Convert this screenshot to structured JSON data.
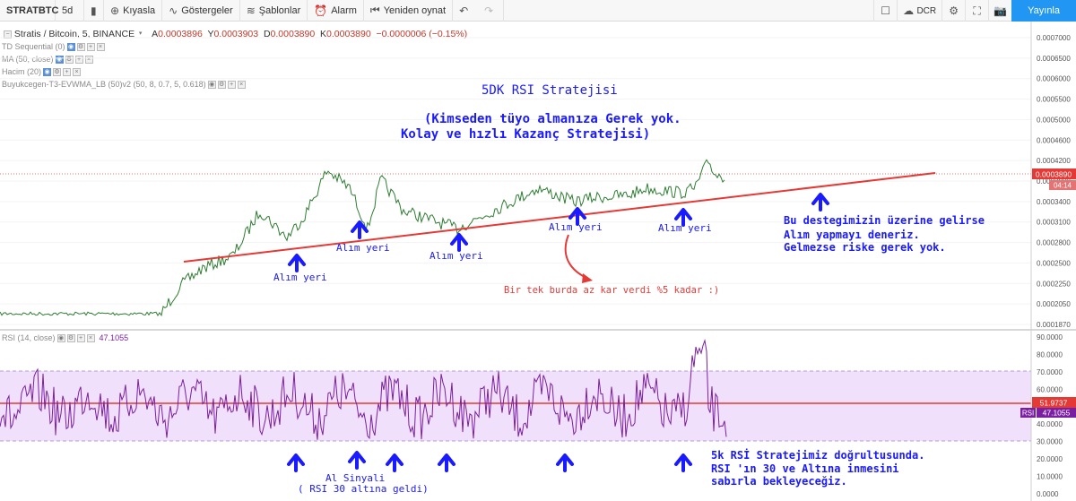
{
  "toolbar": {
    "symbol": "STRATBTC",
    "interval": "5d",
    "compare": "Kıyasla",
    "indicators": "Göstergeler",
    "templates": "Şablonlar",
    "alarm": "Alarm",
    "replay": "Yeniden oynat",
    "currency": "DCR",
    "publish": "Yayınla"
  },
  "legend": {
    "title": "Stratis / Bitcoin, 5, BINANCE",
    "open_label": "A",
    "open": "0.0003896",
    "high_label": "Y",
    "high": "0.0003903",
    "low_label": "D",
    "low": "0.0003890",
    "close_label": "K",
    "close": "0.0003890",
    "change": "−0.0000006 (−0.15%)",
    "indicators": [
      "TD Sequential (0)",
      "MA (50, close)",
      "Hacim (20)",
      "Buyukcegen-T3-EVWMA_LB (50)v2 (50, 8, 0.7, 5, 0.618)"
    ],
    "rsi_label": "RSI (14, close)",
    "rsi_value": "47.1055"
  },
  "price_axis": {
    "ticks": [
      "0.0007000",
      "0.0006500",
      "0.0006000",
      "0.0005500",
      "0.0005000",
      "0.0004600",
      "0.0004200",
      "0.0003800",
      "0.0003400",
      "0.0003100",
      "0.0002800",
      "0.0002500",
      "0.0002250",
      "0.0002050",
      "0.0001870"
    ],
    "last_price": "0.0003890",
    "countdown": "04:14"
  },
  "rsi_axis": {
    "ticks": [
      "90.0000",
      "80.0000",
      "70.0000",
      "60.0000",
      "50.0000",
      "40.0000",
      "30.0000",
      "20.0000",
      "10.0000",
      "0.0000"
    ],
    "marker": "51.9737",
    "tag": "RSI",
    "value": "47.1055"
  },
  "annotations": {
    "title": "5DK RSI Stratejisi",
    "subtitle_1": "(Kimseden tüyo almanıza Gerek yok.",
    "subtitle_2": "Kolay ve hızlı Kazanç Stratejisi)",
    "buy_spot": "Alım yeri",
    "right_1": "Bu destegimizin üzerine gelirse",
    "right_2": "Alım yapmayı deneriz.",
    "right_3": "Gelmezse riske gerek yok.",
    "red_note": "Bir tek burda az kar verdi %5 kadar :)",
    "signal_1": "Al Sinyali",
    "signal_2": "( RSI 30 altına geldi)",
    "rsi_note_1": "5k RSİ Stratejimiz doğrultusunda.",
    "rsi_note_2": "RSI 'ın 30 ve Altına inmesini",
    "rsi_note_3": "sabırla bekleyeceğiz."
  },
  "colors": {
    "price_line": "#2e7d32",
    "support_line": "#e53935",
    "annotation_blue": "#1a1aff",
    "annotation_red": "#e53935",
    "rsi_line": "#7b1fa2",
    "rsi_band": "#f1e0fb",
    "publish_button": "#2196f3"
  },
  "icons": [
    "plus-circle-icon",
    "indicator-wave-icon",
    "templates-icon",
    "alarm-clock-icon",
    "replay-icon",
    "undo-icon",
    "redo-icon",
    "square-icon",
    "cloud-icon",
    "gear-icon",
    "fullscreen-icon",
    "camera-icon"
  ]
}
